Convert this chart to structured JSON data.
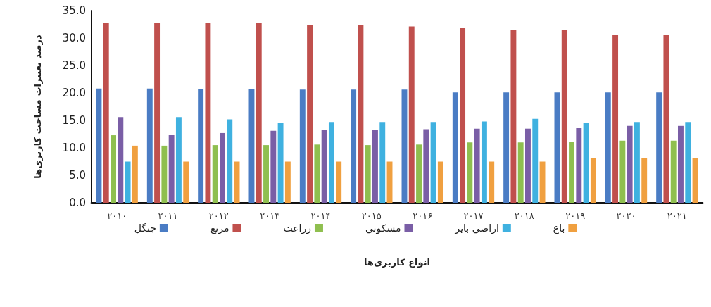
{
  "chart_data": {
    "type": "bar",
    "xlabel": "انواع کاربری‌ها",
    "ylabel": "درصد تغییرات مساحت کاربری‌ها",
    "categories": [
      "۲۰۱۰",
      "۲۰۱۱",
      "۲۰۱۲",
      "۲۰۱۳",
      "۲۰۱۴",
      "۲۰۱۵",
      "۲۰۱۶",
      "۲۰۱۷",
      "۲۰۱۸",
      "۲۰۱۹",
      "۲۰۲۰",
      "۲۰۲۱"
    ],
    "series": [
      {
        "name": "جنگل",
        "color": "#4a7cc4",
        "values": [
          20.8,
          20.8,
          20.7,
          20.7,
          20.6,
          20.6,
          20.6,
          20.1,
          20.1,
          20.1,
          20.1,
          20.1
        ]
      },
      {
        "name": "مرتع",
        "color": "#c0504d",
        "values": [
          32.8,
          32.8,
          32.8,
          32.8,
          32.4,
          32.4,
          32.1,
          31.8,
          31.4,
          31.4,
          30.6,
          30.6
        ]
      },
      {
        "name": "زراعت",
        "color": "#8fbf4f",
        "values": [
          12.3,
          10.4,
          10.5,
          10.5,
          10.6,
          10.5,
          10.6,
          11.0,
          11.0,
          11.1,
          11.3,
          11.3
        ]
      },
      {
        "name": "مسکونی",
        "color": "#7a5ea6",
        "values": [
          15.6,
          12.3,
          12.7,
          13.1,
          13.3,
          13.3,
          13.4,
          13.5,
          13.5,
          13.6,
          14.0,
          14.0
        ]
      },
      {
        "name": "اراضی بایر",
        "color": "#3fb1e0",
        "values": [
          7.5,
          15.6,
          15.2,
          14.5,
          14.7,
          14.7,
          14.7,
          14.8,
          15.3,
          14.5,
          14.7,
          14.7
        ]
      },
      {
        "name": "باغ",
        "color": "#f0a040",
        "values": [
          10.4,
          7.5,
          7.5,
          7.5,
          7.5,
          7.5,
          7.5,
          7.5,
          7.5,
          8.2,
          8.2,
          8.2
        ]
      }
    ],
    "ylim": [
      0,
      35
    ],
    "yticks": [
      {
        "value": 0,
        "label": "0.0"
      },
      {
        "value": 5,
        "label": "5.0"
      },
      {
        "value": 10,
        "label": "10.0"
      },
      {
        "value": 15,
        "label": "15.0"
      },
      {
        "value": 20,
        "label": "20.0"
      },
      {
        "value": 25,
        "label": "25.0"
      },
      {
        "value": 30,
        "label": "30.0"
      },
      {
        "value": 35,
        "label": "35.0"
      }
    ],
    "grid": false,
    "legend": "bottom"
  }
}
